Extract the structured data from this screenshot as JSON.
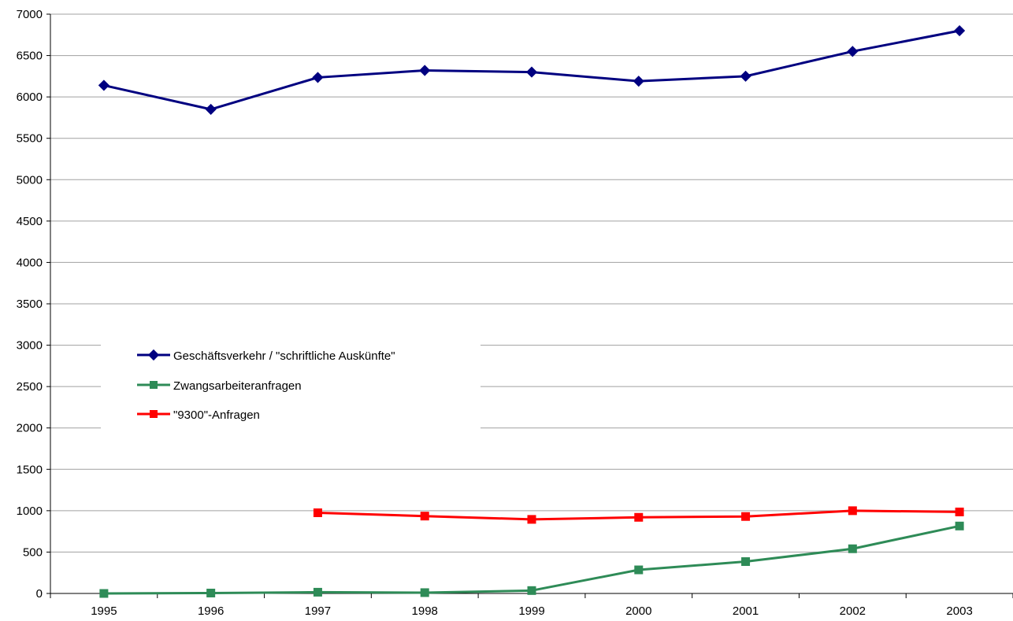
{
  "chart_data": {
    "type": "line",
    "title": "",
    "xlabel": "",
    "ylabel": "",
    "categories": [
      "1995",
      "1996",
      "1997",
      "1998",
      "1999",
      "2000",
      "2001",
      "2002",
      "2003"
    ],
    "ylim": [
      0,
      7000
    ],
    "yticks": [
      0,
      500,
      1000,
      1500,
      2000,
      2500,
      3000,
      3500,
      4000,
      4500,
      5000,
      5500,
      6000,
      6500,
      7000
    ],
    "grid": true,
    "legend_position": "left-middle",
    "series": [
      {
        "name": "Geschäftsverkehr / \"schriftliche Auskünfte\"",
        "color": "#000080",
        "marker": "diamond",
        "values": [
          6140,
          5850,
          6235,
          6320,
          6300,
          6190,
          6250,
          6550,
          6800
        ]
      },
      {
        "name": "Zwangsarbeiteranfragen",
        "color": "#2e8b57",
        "marker": "square",
        "values": [
          0,
          5,
          15,
          10,
          35,
          285,
          385,
          540,
          815
        ]
      },
      {
        "name": "\"9300\"-Anfragen",
        "color": "#ff0000",
        "marker": "x-square",
        "values": [
          null,
          null,
          975,
          935,
          895,
          920,
          930,
          1000,
          985
        ]
      }
    ]
  }
}
